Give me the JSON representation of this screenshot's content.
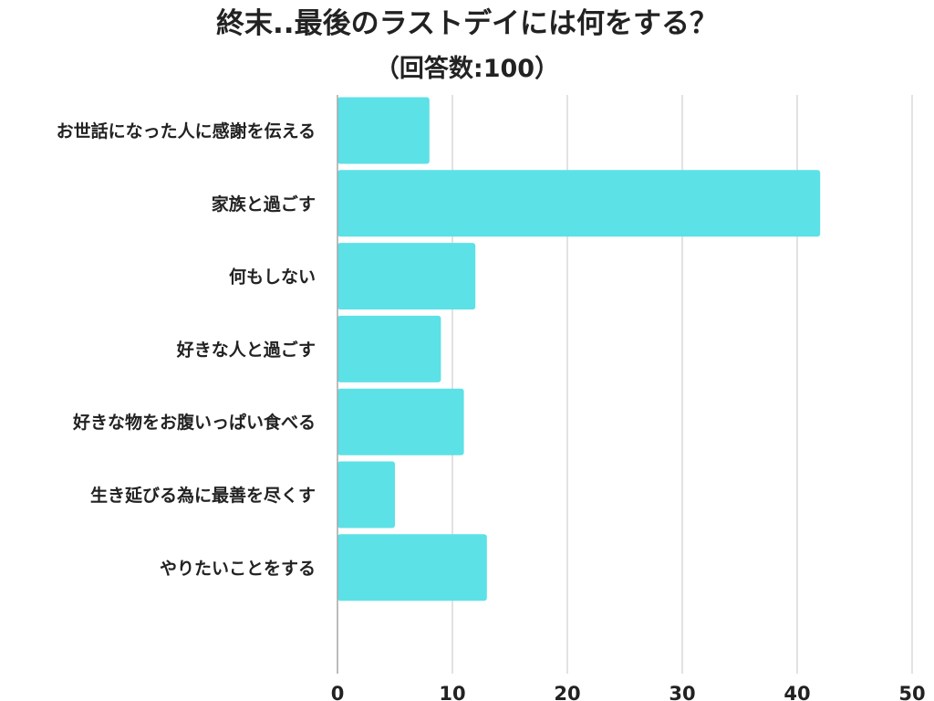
{
  "chart_data": {
    "type": "bar",
    "orientation": "horizontal",
    "title": "終末..最後のラストデイには何をする？",
    "subtitle": "（回答数:100）",
    "categories": [
      "お世話になった人に感謝を伝える",
      "家族と過ごす",
      "何もしない",
      "好きな人と過ごす",
      "好きな物をお腹いっぱい食べる",
      "生き延びる為に最善を尽くす",
      "やりたいことをする"
    ],
    "values": [
      8,
      42,
      12,
      9,
      11,
      5,
      13
    ],
    "xlim": [
      0,
      50
    ],
    "xticks": [
      0,
      10,
      20,
      30,
      40,
      50
    ],
    "grid": true,
    "legend": "none",
    "bar_color": "#5ce1e6",
    "grid_color": "#d9d9d9",
    "text_color": "#222222"
  }
}
